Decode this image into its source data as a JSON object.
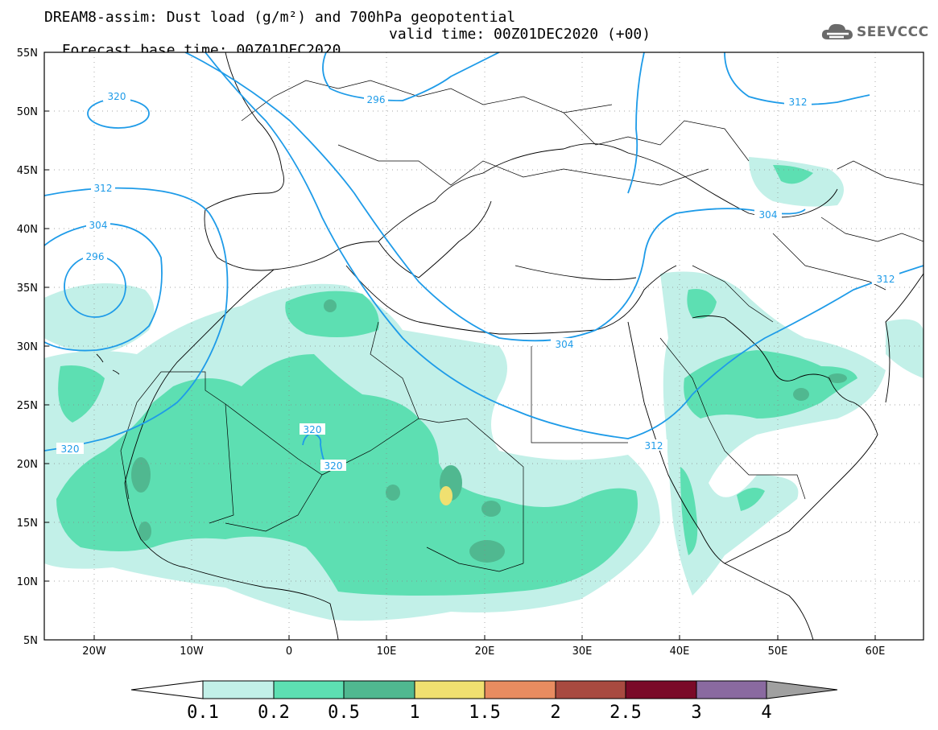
{
  "title": {
    "line1": "DREAM8-assim: Dust load (g/m²) and 700hPa geopotential",
    "line2_base": "Forecast base time: 00Z01DEC2020",
    "line2_valid": "valid time: 00Z01DEC2020 (+00)"
  },
  "logo": {
    "text": "SEEVCCC",
    "icon": "cloud-icon"
  },
  "map": {
    "lat_labels": [
      "55N",
      "50N",
      "45N",
      "40N",
      "35N",
      "30N",
      "25N",
      "20N",
      "15N",
      "10N",
      "5N"
    ],
    "lon_labels": [
      "20W",
      "10W",
      "0",
      "10E",
      "20E",
      "30E",
      "40E",
      "50E",
      "60E"
    ],
    "lon_range": [
      -25,
      65
    ],
    "lat_range": [
      5,
      55
    ],
    "grid": "dotted",
    "contour_labels": [
      "320",
      "312",
      "304",
      "296",
      "296",
      "312",
      "304",
      "312",
      "304",
      "312",
      "320",
      "320"
    ]
  },
  "colorbar": {
    "labels": [
      "0.1",
      "0.2",
      "0.5",
      "1",
      "1.5",
      "2",
      "2.5",
      "3",
      "4"
    ],
    "colors": [
      "#ffffff",
      "#c2f0e8",
      "#5ddfb2",
      "#50b890",
      "#f0e070",
      "#e88c60",
      "#a84a40",
      "#7a0a28",
      "#8a6aa0",
      "#a0a0a0"
    ]
  },
  "colors": {
    "dust_01": "#c2f0e8",
    "dust_02": "#5ddfb2",
    "dust_05": "#50b890",
    "dust_1": "#f0e070",
    "contour": "#1e9be8"
  }
}
